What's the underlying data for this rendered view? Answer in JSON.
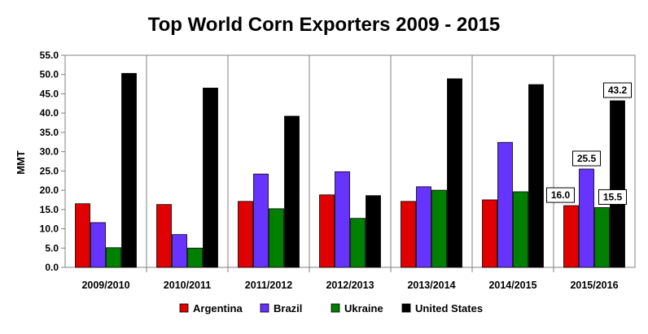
{
  "chart_data": {
    "type": "bar",
    "title": "Top World Corn Exporters 2009 - 2015",
    "ylabel": "MMT",
    "xlabel": "",
    "ylim": [
      0,
      55
    ],
    "ytick_step": 5,
    "ytick_labels": [
      "0.0",
      "5.0",
      "10.0",
      "15.0",
      "20.0",
      "25.0",
      "30.0",
      "35.0",
      "40.0",
      "45.0",
      "50.0",
      "55.0"
    ],
    "categories": [
      "2009/2010",
      "2010/2011",
      "2011/2012",
      "2012/2013",
      "2013/2014",
      "2014/2015",
      "2015/2016"
    ],
    "series": [
      {
        "name": "Argentina",
        "color": "#e00000",
        "values": [
          16.5,
          16.3,
          17.1,
          18.8,
          17.1,
          17.5,
          16.0
        ]
      },
      {
        "name": "Brazil",
        "color": "#6633ff",
        "values": [
          11.6,
          8.5,
          24.2,
          24.8,
          20.9,
          32.4,
          25.5
        ]
      },
      {
        "name": "Ukraine",
        "color": "#008000",
        "values": [
          5.1,
          5.0,
          15.2,
          12.7,
          20.0,
          19.6,
          15.5
        ]
      },
      {
        "name": "United States",
        "color": "#000000",
        "values": [
          50.3,
          46.5,
          39.2,
          18.6,
          48.9,
          47.4,
          43.2
        ]
      }
    ],
    "data_labels": [
      {
        "category_index": 6,
        "series_index": 0,
        "text": "16.0"
      },
      {
        "category_index": 6,
        "series_index": 1,
        "text": "25.5"
      },
      {
        "category_index": 6,
        "series_index": 2,
        "text": "15.5"
      },
      {
        "category_index": 6,
        "series_index": 3,
        "text": "43.2"
      }
    ],
    "grid": false,
    "category_separators": true,
    "legend_position": "bottom"
  }
}
